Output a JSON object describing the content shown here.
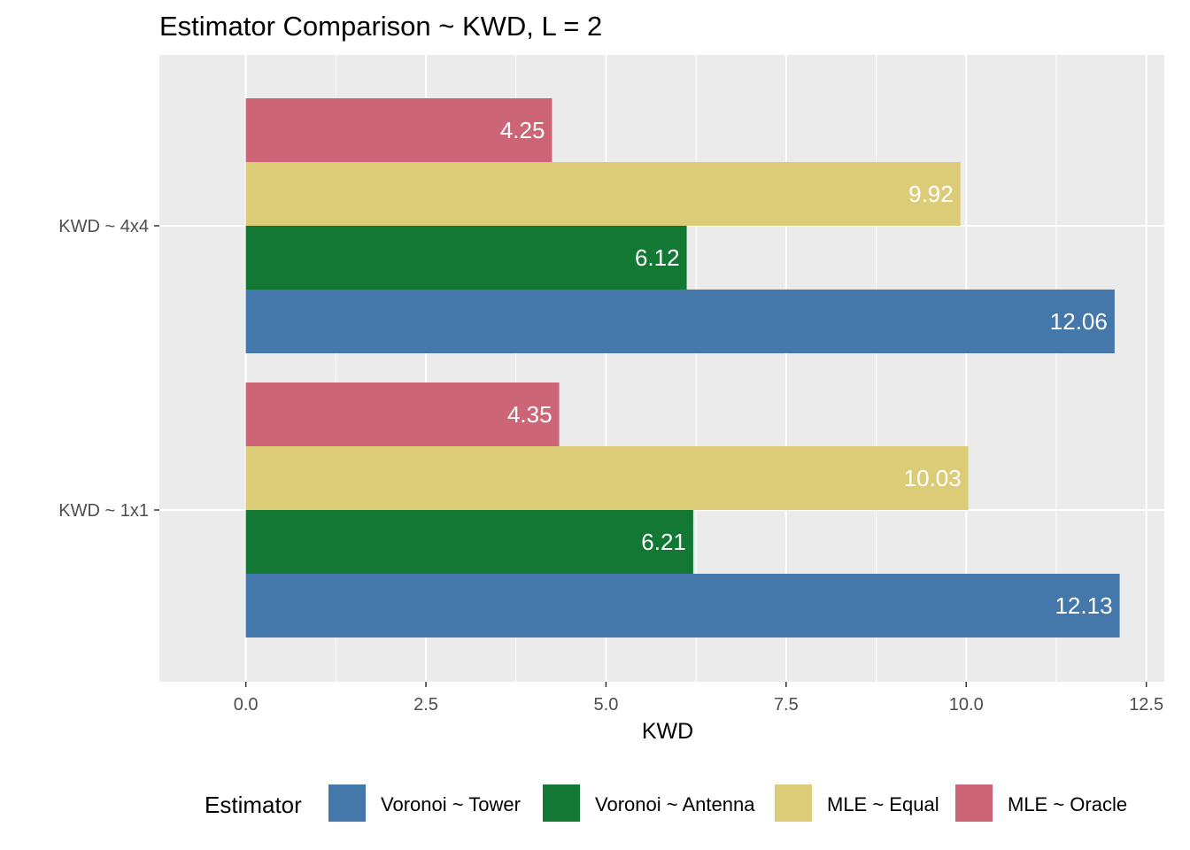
{
  "chart_data": {
    "type": "bar",
    "orientation": "horizontal",
    "title": "Estimator Comparison ~ KWD, L = 2",
    "xlabel": "KWD",
    "ylabel": "",
    "xlim": [
      -1.2,
      12.75
    ],
    "x_ticks": [
      0.0,
      2.5,
      5.0,
      7.5,
      10.0,
      12.5
    ],
    "x_tick_labels": [
      "0.0",
      "2.5",
      "5.0",
      "7.5",
      "10.0",
      "12.5"
    ],
    "categories": [
      "KWD ~ 1x1",
      "KWD ~ 4x4"
    ],
    "series": [
      {
        "name": "Voronoi ~ Tower",
        "color": "#4477aa",
        "values": [
          12.13,
          12.06
        ],
        "labels": [
          "12.13",
          "12.06"
        ]
      },
      {
        "name": "Voronoi ~ Antenna",
        "color": "#137834",
        "values": [
          6.21,
          6.12
        ],
        "labels": [
          "6.21",
          "6.12"
        ]
      },
      {
        "name": "MLE ~ Equal",
        "color": "#ddcc77",
        "values": [
          10.03,
          9.92
        ],
        "labels": [
          "10.03",
          "9.92"
        ]
      },
      {
        "name": "MLE ~ Oracle",
        "color": "#cc6677",
        "values": [
          4.35,
          4.25
        ],
        "labels": [
          "4.35",
          "4.25"
        ]
      }
    ],
    "legend_title": "Estimator",
    "legend_position": "bottom",
    "grid": true,
    "panel_color": "#ebebeb"
  }
}
